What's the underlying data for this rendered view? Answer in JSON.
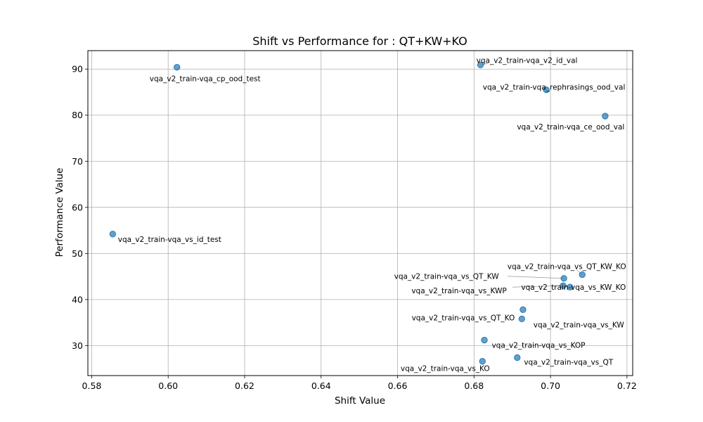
{
  "chart_data": {
    "type": "scatter",
    "title": "Shift vs Performance for : QT+KW+KO",
    "xlabel": "Shift Value",
    "ylabel": "Performance Value",
    "xlim": [
      0.579,
      0.7215
    ],
    "ylim": [
      23.5,
      94
    ],
    "xticks": [
      "0.58",
      "0.60",
      "0.62",
      "0.64",
      "0.66",
      "0.68",
      "0.70",
      "0.72"
    ],
    "yticks": [
      "30",
      "40",
      "50",
      "60",
      "70",
      "80",
      "90"
    ],
    "grid": true,
    "marker_color": "#1f77b4",
    "points": [
      {
        "label": "vqa_v2_train-vqa_cp_ood_test",
        "x": 0.6023,
        "y": 90.4
      },
      {
        "label": "vqa_v2_train-vqa_v2_id_val",
        "x": 0.6817,
        "y": 90.9
      },
      {
        "label": "vqa_v2_train-vqa_rephrasings_ood_val",
        "x": 0.6989,
        "y": 85.5
      },
      {
        "label": "vqa_v2_train-vqa_ce_ood_val",
        "x": 0.7143,
        "y": 79.8
      },
      {
        "label": "vqa_v2_train-vqa_vs_id_test",
        "x": 0.5855,
        "y": 54.2
      },
      {
        "label": "vqa_v2_train-vqa_vs_QT_KW_KO",
        "x": 0.7083,
        "y": 45.4
      },
      {
        "label": "vqa_v2_train-vqa_vs_QT_KW",
        "x": 0.7035,
        "y": 44.6
      },
      {
        "label": "vqa_v2_train-vqa_vs_KW_KO",
        "x": 0.7051,
        "y": 42.7
      },
      {
        "label": "vqa_v2_train-vqa_vs_KWP",
        "x": 0.7033,
        "y": 43.0
      },
      {
        "label": "vqa_v2_train-vqa_vs_QT_KO",
        "x": 0.6928,
        "y": 37.8
      },
      {
        "label": "vqa_v2_train-vqa_vs_KW",
        "x": 0.6925,
        "y": 35.8
      },
      {
        "label": "vqa_v2_train-vqa_vs_KOP",
        "x": 0.6827,
        "y": 31.2
      },
      {
        "label": "vqa_v2_train-vqa_vs_QT",
        "x": 0.6913,
        "y": 27.4
      },
      {
        "label": "vqa_v2_train-vqa_vs_KO",
        "x": 0.6822,
        "y": 26.6
      }
    ]
  }
}
